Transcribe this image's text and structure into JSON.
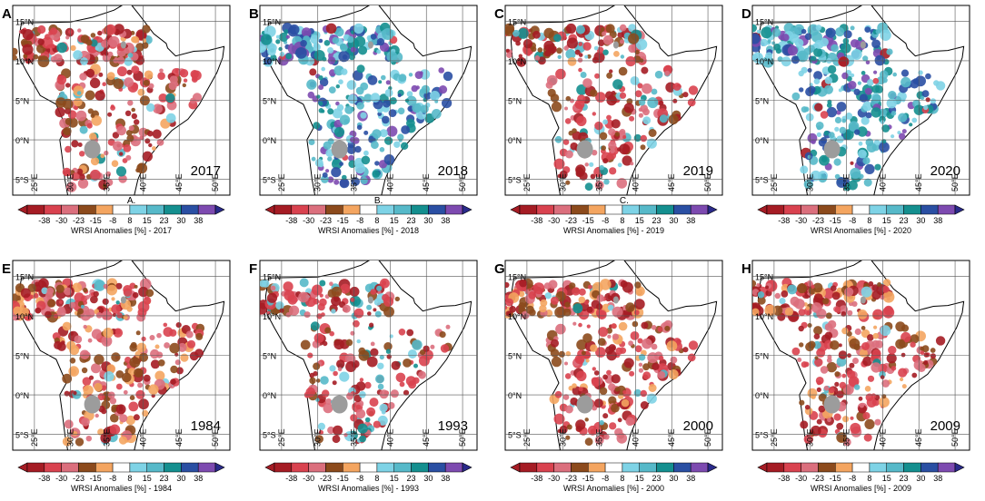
{
  "colors": {
    "bins": [
      "#a51c24",
      "#d9424f",
      "#db6f7d",
      "#8c4a1c",
      "#f4a560",
      "#ffffff",
      "#7ed3e6",
      "#56b9c9",
      "#148f8f",
      "#2a4fa3",
      "#7d4ab0"
    ],
    "land": "#ffffff",
    "lake": "#9c9c9c",
    "grid": "#555555",
    "border": "#000000"
  },
  "chart_data": {
    "type": "heatmap",
    "legend_ticks": [
      "-38",
      "-30",
      "-23",
      "-15",
      "-8",
      "8",
      "15",
      "23",
      "30",
      "38"
    ],
    "legend_title_prefix": "WRSI Anomalies [%] - ",
    "lat_labels": [
      "15°N",
      "10°N",
      "5°N",
      "0°N",
      "5°S"
    ],
    "lon_labels": [
      "25°E",
      "30°E",
      "35°E",
      "40°E",
      "45°E",
      "50°E"
    ],
    "panels": [
      {
        "letter": "A",
        "year": "2017",
        "tag": "A.",
        "wet": 0.15,
        "dry": 0.78
      },
      {
        "letter": "B",
        "year": "2018",
        "tag": "B.",
        "wet": 0.95,
        "dry": 0.05
      },
      {
        "letter": "C",
        "year": "2019",
        "tag": "C.",
        "wet": 0.25,
        "dry": 0.7
      },
      {
        "letter": "D",
        "year": "2020",
        "tag": "",
        "wet": 0.85,
        "dry": 0.08
      },
      {
        "letter": "E",
        "year": "1984",
        "tag": "",
        "wet": 0.08,
        "dry": 0.95
      },
      {
        "letter": "F",
        "year": "1993",
        "tag": "",
        "wet": 0.3,
        "dry": 0.6
      },
      {
        "letter": "G",
        "year": "2000",
        "tag": "",
        "wet": 0.1,
        "dry": 0.85
      },
      {
        "letter": "H",
        "year": "2009",
        "tag": "",
        "wet": 0.1,
        "dry": 0.9
      }
    ]
  }
}
